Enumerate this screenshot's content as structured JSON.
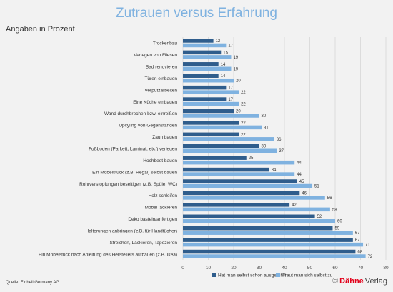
{
  "chart_data": {
    "type": "bar",
    "orientation": "horizontal",
    "title": "Zutrauen versus Erfahrung",
    "subtitle": "Angaben in Prozent",
    "categories": [
      "Trockenbau",
      "Verlegen von Fliesen",
      "Bad renovieren",
      "Türen einbauen",
      "Verputzarbeiten",
      "Eine Küche einbauen",
      "Wand durchbrechen bzw. einreißen",
      "Upcyling von Gegenständen",
      "Zaun bauen",
      "Fußboden (Parkett, Laminat, etc.) verlegen",
      "Hochbeet bauen",
      "Ein Möbelstück (z.B. Regal) selbst bauen",
      "Rohrverstopfungen beseitigen (z.B. Spüle, WC)",
      "Holz schleifen",
      "Möbel lackieren",
      "Deko basteln/anfertigen",
      "Halterungen anbringen (z.B. für Handtücher)",
      "Streichen, Lackieren, Tapezieren",
      "Ein Möbelstück nach Anleitung des Herstellers aufbauen (z.B. Ikea)"
    ],
    "series": [
      {
        "name": "Hat man selbst schon ausgeführt",
        "color": "#2f5d8c",
        "values": [
          12,
          15,
          14,
          14,
          17,
          17,
          20,
          22,
          22,
          30,
          25,
          34,
          45,
          46,
          42,
          52,
          59,
          67,
          68
        ]
      },
      {
        "name": "Traut man sich selbst zu",
        "color": "#7fb2e0",
        "values": [
          17,
          19,
          19,
          20,
          22,
          22,
          30,
          31,
          36,
          37,
          44,
          44,
          51,
          56,
          58,
          60,
          67,
          71,
          72
        ]
      }
    ],
    "xlim": [
      0,
      80
    ],
    "xticks": [
      0,
      10,
      20,
      30,
      40,
      50,
      60,
      70,
      80
    ],
    "grid": true,
    "legend_position": "bottom"
  },
  "source": "Quelle: Einhell Germany AG",
  "logo": {
    "symbol": "©",
    "brand": "Dähne",
    "suffix": "Verlag"
  }
}
